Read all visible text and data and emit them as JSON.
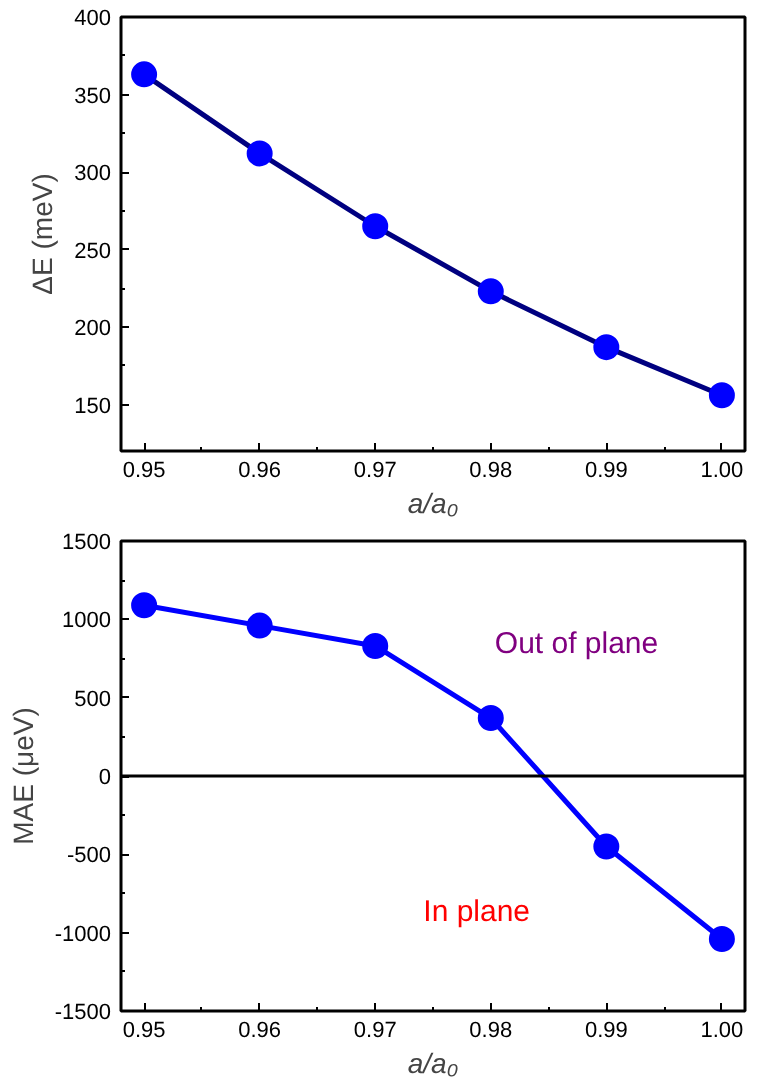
{
  "chart_data": [
    {
      "type": "line",
      "xlabel": "a/a₀",
      "ylabel": "ΔE (meV)",
      "x": [
        0.95,
        0.96,
        0.97,
        0.98,
        0.99,
        1.0
      ],
      "xlim": [
        0.948,
        1.002
      ],
      "ylim": [
        120,
        400
      ],
      "xticks": [
        {
          "value": 0.95,
          "label": "0.95"
        },
        {
          "value": 0.96,
          "label": "0.96"
        },
        {
          "value": 0.97,
          "label": "0.97"
        },
        {
          "value": 0.98,
          "label": "0.98"
        },
        {
          "value": 0.99,
          "label": "0.99"
        },
        {
          "value": 1.0,
          "label": "1.00"
        }
      ],
      "yticks": [
        150,
        200,
        250,
        300,
        350,
        400
      ],
      "marker": "circle",
      "line_style": "solid",
      "grid": false,
      "series": [
        {
          "color": "#000080",
          "colors": [
            "#0000ff",
            "#0000ff",
            "#0000ff",
            "#0000ff",
            "#0000ff",
            "#0000ff"
          ],
          "values": [
            363,
            312,
            265,
            223,
            187,
            156
          ]
        }
      ]
    },
    {
      "type": "line",
      "xlabel": "a/a₀",
      "ylabel": "MAE (μeV)",
      "x": [
        0.95,
        0.96,
        0.97,
        0.98,
        0.99,
        1.0
      ],
      "xlim": [
        0.948,
        1.002
      ],
      "ylim": [
        -1500,
        1500
      ],
      "xticks": [
        {
          "value": 0.95,
          "label": "0.95"
        },
        {
          "value": 0.96,
          "label": "0.96"
        },
        {
          "value": 0.97,
          "label": "0.97"
        },
        {
          "value": 0.98,
          "label": "0.98"
        },
        {
          "value": 0.99,
          "label": "0.99"
        },
        {
          "value": 1.0,
          "label": "1.00"
        }
      ],
      "yticks": [
        -1500,
        -1000,
        -500,
        0,
        500,
        1000,
        1500
      ],
      "marker": "circle",
      "line_style": "solid",
      "grid": false,
      "ref_lines": [
        {
          "axis": "y",
          "value": 0,
          "color": "#000000"
        }
      ],
      "annotations": [
        "Out of plane",
        "In plane"
      ],
      "series": [
        {
          "color": "#0000ff",
          "colors": [
            "#0000ff",
            "#0000ff",
            "#0000ff",
            "#0000ff",
            "#0000ff",
            "#0000ff"
          ],
          "values": [
            1090,
            960,
            830,
            370,
            -450,
            -1040
          ]
        }
      ]
    }
  ]
}
